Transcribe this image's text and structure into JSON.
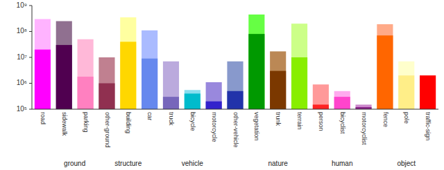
{
  "chart_data": {
    "type": "bar",
    "categories": [
      "road",
      "sidewalk",
      "parking",
      "other-ground",
      "building",
      "car",
      "truck",
      "bicycle",
      "motorcycle",
      "other-vehicle",
      "vegetation",
      "trunk",
      "terrain",
      "person",
      "bicyclist",
      "motorcyclist",
      "fence",
      "pole",
      "traffic-sign"
    ],
    "series": [
      {
        "values": [
          300000000.0,
          250000000.0,
          50000000.0,
          10000000.0,
          350000000.0,
          110000000.0,
          7000000.0,
          550000.0,
          1100000.0,
          7000000.0,
          450000000.0,
          17000000.0,
          200000000.0,
          900000.0,
          500000.0,
          150000.0,
          190000000.0,
          7000000.0,
          2000000.0
        ],
        "colors": [
          "#FFB3FF",
          "#907090",
          "#FFB8D8",
          "#C08090",
          "#FFFFA0",
          "#AABBFF",
          "#BBAADD",
          "#88DDEE",
          "#9988DD",
          "#8899CC",
          "#66FF44",
          "#BB8855",
          "#CCFF88",
          "#FF9999",
          "#FFAAEE",
          "#CC88CC",
          "#FFAA88",
          "#FFFFCC",
          "#FF8888"
        ]
      },
      {
        "values": [
          20000000.0,
          30000000.0,
          1800000.0,
          1000000.0,
          40000000.0,
          9000000.0,
          300000.0,
          400000.0,
          200000.0,
          500000.0,
          80000000.0,
          3000000.0,
          10000000.0,
          150000.0,
          300000.0,
          120000.0,
          70000000.0,
          2000000.0,
          2000000.0
        ],
        "colors": [
          "#FF00FF",
          "#500050",
          "#FF80C0",
          "#903050",
          "#FFD700",
          "#6688EE",
          "#7766BB",
          "#00BBCC",
          "#3322CC",
          "#2233AA",
          "#009900",
          "#7B3800",
          "#88EE00",
          "#FF2222",
          "#FF44CC",
          "#882288",
          "#FF6600",
          "#FFEE88",
          "#FF0000"
        ]
      }
    ],
    "groups": [
      {
        "name": "ground",
        "start": 0,
        "end": 3
      },
      {
        "name": "structure",
        "start": 4,
        "end": 4
      },
      {
        "name": "vehicle",
        "start": 5,
        "end": 9
      },
      {
        "name": "nature",
        "start": 10,
        "end": 12
      },
      {
        "name": "human",
        "start": 13,
        "end": 15
      },
      {
        "name": "object",
        "start": 16,
        "end": 18
      }
    ],
    "log": "y",
    "ylim": [
      100000,
      1000000000
    ],
    "yticks": [
      {
        "value": 100000,
        "label": "10⁵"
      },
      {
        "value": 1000000,
        "label": "10⁶"
      },
      {
        "value": 10000000,
        "label": "10⁷"
      },
      {
        "value": 100000000,
        "label": "10⁸"
      },
      {
        "value": 1000000000,
        "label": "10⁹"
      }
    ],
    "grid": false
  }
}
